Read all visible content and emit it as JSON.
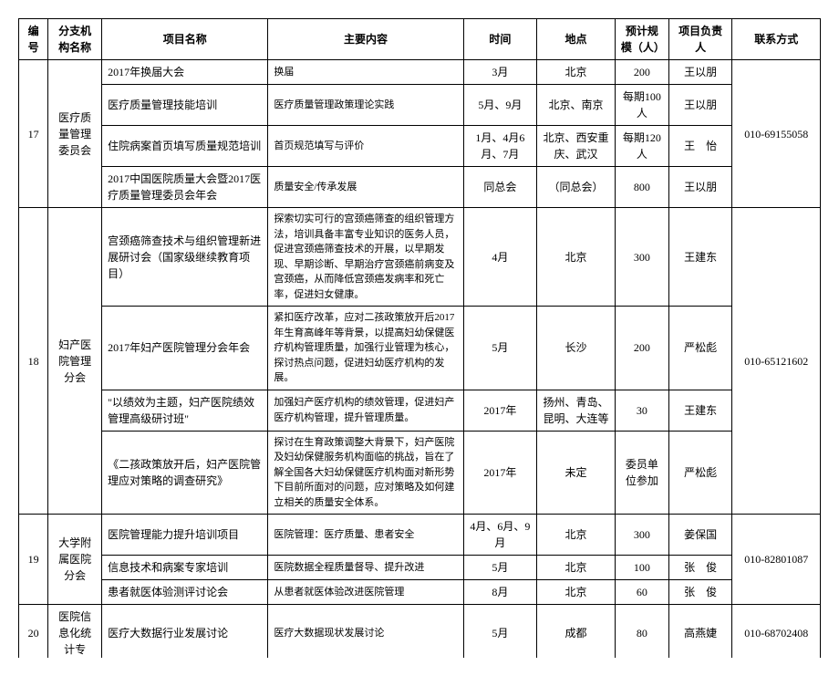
{
  "headers": {
    "id": "编号",
    "branch": "分支机构名称",
    "project": "项目名称",
    "content": "主要内容",
    "time": "时间",
    "place": "地点",
    "scale": "预计规模（人）",
    "owner": "项目负责人",
    "contact": "联系方式"
  },
  "groups": [
    {
      "id": "17",
      "branch": "医疗质量管理委员会",
      "contact": "010-69155058",
      "rows": [
        {
          "project": "2017年换届大会",
          "content": "换届",
          "time": "3月",
          "place": "北京",
          "scale": "200",
          "owner": "王以朋"
        },
        {
          "project": "医疗质量管理技能培训",
          "content": "医疗质量管理政策理论实践",
          "time": "5月、9月",
          "place": "北京、南京",
          "scale": "每期100人",
          "owner": "王以朋"
        },
        {
          "project": "住院病案首页填写质量规范培训",
          "content": "首页规范填写与评价",
          "time": "1月、4月6月、7月",
          "place": "北京、西安重庆、武汉",
          "scale": "每期120人",
          "owner": "王　怡"
        },
        {
          "project": "2017中国医院质量大会暨2017医疗质量管理委员会年会",
          "content": "质量安全/传承发展",
          "time": "同总会",
          "place": "（同总会）",
          "scale": "800",
          "owner": "王以朋"
        }
      ]
    },
    {
      "id": "18",
      "branch": "妇产医院管理分会",
      "contact": "010-65121602",
      "rows": [
        {
          "project": "宫颈癌筛查技术与组织管理新进展研讨会（国家级继续教育项目）",
          "content": "探索切实可行的宫颈癌筛查的组织管理方法，培训具备丰富专业知识的医务人员，促进宫颈癌筛查技术的开展，以早期发现、早期诊断、早期治疗宫颈癌前病变及宫颈癌，从而降低宫颈癌发病率和死亡率，促进妇女健康。",
          "time": "4月",
          "place": "北京",
          "scale": "300",
          "owner": "王建东"
        },
        {
          "project": "2017年妇产医院管理分会年会",
          "content": "紧扣医疗改革，应对二孩政策放开后2017年生育高峰年等背景，以提高妇幼保健医疗机构管理质量，加强行业管理为核心，探讨热点问题，促进妇幼医疗机构的发展。",
          "time": "5月",
          "place": "长沙",
          "scale": "200",
          "owner": "严松彪"
        },
        {
          "project": "\"以绩效为主题，妇产医院绩效管理高级研讨班\"",
          "content": "加强妇产医疗机构的绩效管理，促进妇产医疗机构管理，提升管理质量。",
          "time": "2017年",
          "place": "扬州、青岛、昆明、大连等",
          "scale": "30",
          "owner": "王建东"
        },
        {
          "project": "《二孩政策放开后，妇产医院管理应对策略的调查研究》",
          "content": "探讨在生育政策调整大背景下，妇产医院及妇幼保健服务机构面临的挑战，旨在了解全国各大妇幼保健医疗机构面对新形势下目前所面对的问题，应对策略及如何建立相关的质量安全体系。",
          "time": "2017年",
          "place": "未定",
          "scale": "委员单位参加",
          "owner": "严松彪"
        }
      ]
    },
    {
      "id": "19",
      "branch": "大学附属医院分会",
      "contact": "010-82801087",
      "rows": [
        {
          "project": "医院管理能力提升培训项目",
          "content": "医院管理：医疗质量、患者安全",
          "time": "4月、6月、9月",
          "place": "北京",
          "scale": "300",
          "owner": "姜保国"
        },
        {
          "project": "信息技术和病案专家培训",
          "content": "医院数据全程质量督导、提升改进",
          "time": "5月",
          "place": "北京",
          "scale": "100",
          "owner": "张　俊"
        },
        {
          "project": "患者就医体验测评讨论会",
          "content": "从患者就医体验改进医院管理",
          "time": "8月",
          "place": "北京",
          "scale": "60",
          "owner": "张　俊"
        }
      ]
    },
    {
      "id": "20",
      "branch": "医院信息化统计专",
      "contact": "010-68702408",
      "rows": [
        {
          "project": "医疗大数据行业发展讨论",
          "content": "医疗大数据现状发展讨论",
          "time": "5月",
          "place": "成都",
          "scale": "80",
          "owner": "高燕婕"
        }
      ]
    }
  ]
}
